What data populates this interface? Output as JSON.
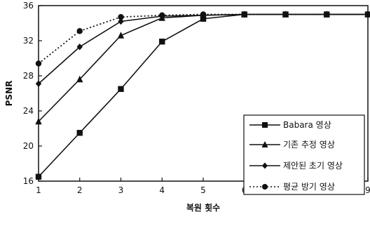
{
  "chart_data": {
    "type": "line",
    "title": "",
    "xlabel": "복원 횟수",
    "ylabel": "PSNR",
    "x": [
      1,
      2,
      3,
      4,
      5,
      6,
      7,
      8,
      9
    ],
    "xlim": [
      1,
      9
    ],
    "ylim": [
      16,
      36
    ],
    "yticks": [
      16,
      20,
      24,
      28,
      32,
      36
    ],
    "grid": false,
    "legend_position": "bottom-right",
    "series": [
      {
        "name": "Babara 영상",
        "marker": "square",
        "line": "solid",
        "values": [
          16.5,
          21.5,
          26.5,
          31.9,
          34.5,
          35.0,
          35.0,
          35.0,
          35.0
        ]
      },
      {
        "name": "기존 추정 영상",
        "marker": "triangle",
        "line": "solid",
        "values": [
          22.8,
          27.6,
          32.6,
          34.6,
          34.9,
          35.0,
          35.0,
          35.0,
          35.0
        ]
      },
      {
        "name": "제안된 초기 영상",
        "marker": "diamond",
        "line": "solid",
        "values": [
          27.1,
          31.3,
          34.2,
          34.8,
          34.9,
          35.0,
          35.0,
          35.0,
          35.0
        ]
      },
      {
        "name": "평균 방기 영상",
        "marker": "circle",
        "line": "dotted",
        "values": [
          29.4,
          33.1,
          34.7,
          34.9,
          35.0,
          35.0,
          35.0,
          35.0,
          35.0
        ]
      }
    ]
  }
}
